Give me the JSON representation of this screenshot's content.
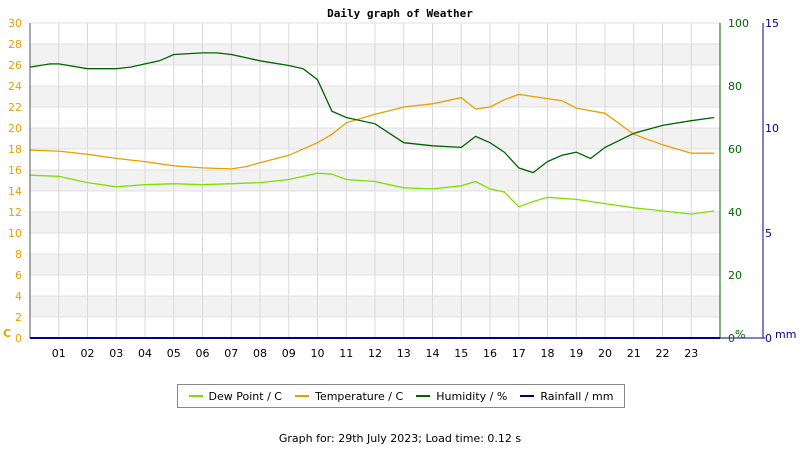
{
  "chart_data": {
    "type": "line",
    "title": "Daily graph of Weather",
    "x_tick_labels": [
      "01",
      "02",
      "03",
      "04",
      "05",
      "06",
      "07",
      "08",
      "09",
      "10",
      "11",
      "12",
      "13",
      "14",
      "15",
      "16",
      "17",
      "18",
      "19",
      "20",
      "21",
      "22",
      "23"
    ],
    "xlim": [
      0,
      24
    ],
    "axes": {
      "temp": {
        "unit_label": "C",
        "range": [
          0,
          30
        ],
        "ticks": [
          0,
          2,
          4,
          6,
          8,
          10,
          12,
          14,
          16,
          18,
          20,
          22,
          24,
          26,
          28,
          30
        ],
        "color": "#e8a000"
      },
      "humidity": {
        "unit_label": "%",
        "range": [
          0,
          100
        ],
        "ticks": [
          0,
          20,
          40,
          60,
          80,
          100
        ],
        "color": "#006400"
      },
      "rainfall": {
        "unit_label": "mm",
        "range": [
          0,
          15
        ],
        "ticks": [
          0,
          5,
          10,
          15
        ],
        "color": "#00008b"
      }
    },
    "series": [
      {
        "name": "Dew Point / C",
        "axis": "temp",
        "color": "#7fe000",
        "x": [
          0,
          1,
          2,
          3,
          4,
          5,
          6,
          7,
          8,
          9,
          10,
          10.5,
          11,
          12,
          13,
          14,
          15,
          15.5,
          16,
          16.5,
          17,
          17.5,
          18,
          19,
          20,
          21,
          22,
          23,
          23.8
        ],
        "y": [
          15.5,
          15.4,
          14.8,
          14.4,
          14.6,
          14.7,
          14.6,
          14.7,
          14.8,
          15.1,
          15.7,
          15.6,
          15.1,
          14.9,
          14.3,
          14.2,
          14.5,
          14.9,
          14.2,
          13.9,
          12.5,
          13.0,
          13.4,
          13.2,
          12.8,
          12.4,
          12.1,
          11.8,
          12.1
        ]
      },
      {
        "name": "Temperature / C",
        "axis": "temp",
        "color": "#e8a000",
        "x": [
          0,
          1,
          2,
          3,
          4,
          5,
          6,
          7,
          7.5,
          8,
          9,
          10,
          10.5,
          11,
          12,
          13,
          14,
          15,
          15.5,
          16,
          16.5,
          17,
          18,
          18.5,
          19,
          20,
          21,
          22,
          23,
          23.8
        ],
        "y": [
          17.9,
          17.8,
          17.5,
          17.1,
          16.8,
          16.4,
          16.2,
          16.1,
          16.3,
          16.7,
          17.4,
          18.6,
          19.4,
          20.5,
          21.3,
          22.0,
          22.3,
          22.9,
          21.8,
          22.0,
          22.7,
          23.2,
          22.8,
          22.6,
          21.9,
          21.4,
          19.4,
          18.4,
          17.6,
          17.6
        ]
      },
      {
        "name": "Humidity / %",
        "axis": "humidity",
        "color": "#006400",
        "x": [
          0,
          0.7,
          1,
          2,
          3,
          3.5,
          4,
          4.5,
          5,
          6,
          6.5,
          7,
          7.5,
          8,
          9,
          9.5,
          10,
          10.5,
          11,
          12,
          12.5,
          13,
          14,
          15,
          15.5,
          16,
          16.5,
          17,
          17.5,
          18,
          18.5,
          19,
          19.5,
          20,
          21,
          22,
          23,
          23.8
        ],
        "y": [
          86,
          87,
          87,
          85.5,
          85.5,
          86,
          87,
          88,
          90,
          90.5,
          90.5,
          90,
          89,
          88,
          86.5,
          85.5,
          82,
          72,
          70,
          68,
          65,
          62,
          61,
          60.5,
          64,
          62,
          59,
          54,
          52.5,
          56,
          58,
          59,
          57,
          60.5,
          65,
          67.5,
          69,
          70
        ]
      },
      {
        "name": "Rainfall / mm",
        "axis": "rainfall",
        "color": "#00008b",
        "x": [
          0,
          24
        ],
        "y": [
          0,
          0
        ]
      }
    ],
    "grid": true
  },
  "footer": "Graph for: 29th July 2023; Load time: 0.12 s"
}
